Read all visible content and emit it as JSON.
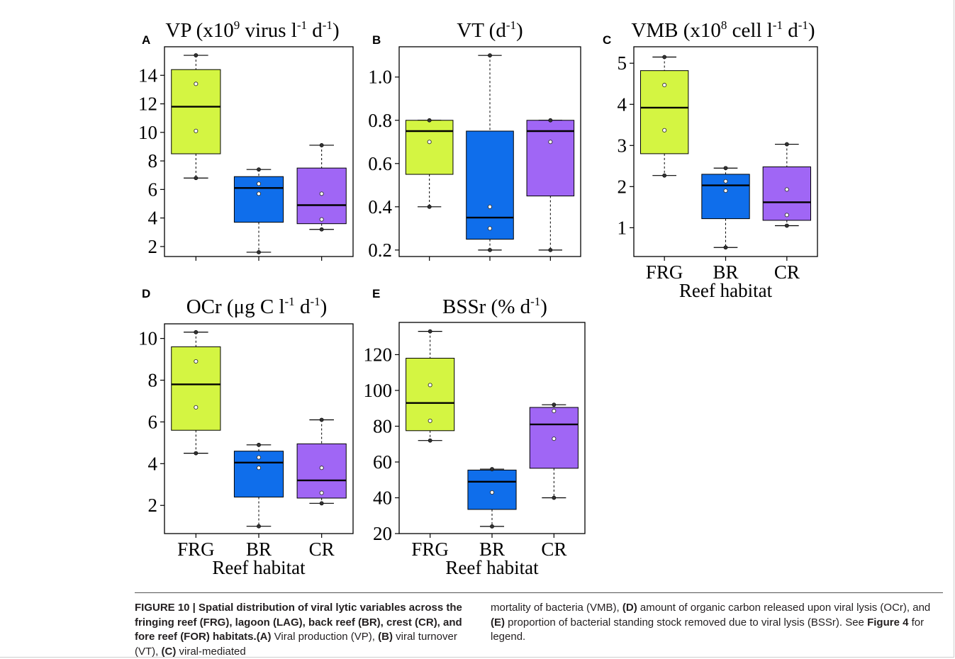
{
  "figure_label": "FIGURE 10",
  "caption": {
    "title": "FIGURE 10 | Spatial distribution of viral lytic variables across the fringing reef (FRG), lagoon (LAG), back reef (BR), crest (CR), and fore reef (FOR) habitats.",
    "a_label": "(A)",
    "a_text": " Viral production (VP), ",
    "b_label": "(B)",
    "b_text": " viral turnover (VT), ",
    "c_label": "(C)",
    "c_text": " viral-mediated mortality of bacteria (VMB), ",
    "d_label": "(D)",
    "d_text": " amount of organic carbon released upon viral lysis (OCr), and ",
    "e_label": "(E)",
    "e_text": " proportion of bacterial standing stock removed due to viral lysis (BSSr). See ",
    "ref": "Figure 4",
    "end": " for legend."
  },
  "colors": {
    "FRG": "#d4f542",
    "BR": "#0f6eeb",
    "CR": "#a066f5"
  },
  "chart_data": [
    {
      "panel": "A",
      "type": "boxplot",
      "title_main": "VP (x10",
      "title_sup1": "9",
      "title_mid": " virus l",
      "title_sup2": "-1",
      "title_mid2": " d",
      "title_sup3": "-1",
      "title_end": ")",
      "categories": [
        "FRG",
        "BR",
        "CR"
      ],
      "ylim": [
        1.3,
        16.0
      ],
      "yticks": [
        2,
        4,
        6,
        8,
        10,
        12,
        14
      ],
      "show_xlabels": false,
      "xlabel": "",
      "boxes": [
        {
          "min": 6.8,
          "q1": 8.5,
          "median": 11.8,
          "q3": 14.4,
          "max": 15.4,
          "points": [
            10.1,
            13.4
          ]
        },
        {
          "min": 1.6,
          "q1": 3.7,
          "median": 6.1,
          "q3": 6.9,
          "max": 7.4,
          "points": [
            5.7,
            6.4
          ]
        },
        {
          "min": 3.2,
          "q1": 3.6,
          "median": 4.9,
          "q3": 7.5,
          "max": 9.1,
          "points": [
            3.9,
            5.7
          ]
        }
      ]
    },
    {
      "panel": "B",
      "type": "boxplot",
      "title_main": "VT (d",
      "title_sup1": "-1",
      "title_mid": "",
      "title_sup2": "",
      "title_mid2": "",
      "title_sup3": "",
      "title_end": ")",
      "categories": [
        "FRG",
        "BR",
        "CR"
      ],
      "ylim": [
        0.17,
        1.14
      ],
      "yticks": [
        "0.2",
        "0.4",
        "0.6",
        "0.8",
        "1.0"
      ],
      "show_xlabels": false,
      "xlabel": "",
      "boxes": [
        {
          "min": 0.4,
          "q1": 0.55,
          "median": 0.75,
          "q3": 0.8,
          "max": 0.8,
          "points": [
            0.7
          ]
        },
        {
          "min": 0.2,
          "q1": 0.25,
          "median": 0.35,
          "q3": 0.75,
          "max": 1.1,
          "points": [
            0.3,
            0.4
          ]
        },
        {
          "min": 0.2,
          "q1": 0.45,
          "median": 0.75,
          "q3": 0.8,
          "max": 0.8,
          "points": [
            0.7
          ]
        }
      ]
    },
    {
      "panel": "C",
      "type": "boxplot",
      "title_main": "VMB (x10",
      "title_sup1": "8",
      "title_mid": " cell l",
      "title_sup2": "-1",
      "title_mid2": " d",
      "title_sup3": "-1",
      "title_end": ")",
      "categories": [
        "FRG",
        "BR",
        "CR"
      ],
      "ylim": [
        0.3,
        5.4
      ],
      "yticks": [
        1,
        2,
        3,
        4,
        5
      ],
      "show_xlabels": true,
      "xlabel": "Reef habitat",
      "boxes": [
        {
          "min": 2.27,
          "q1": 2.8,
          "median": 3.92,
          "q3": 4.82,
          "max": 5.15,
          "points": [
            3.37,
            4.47
          ]
        },
        {
          "min": 0.52,
          "q1": 1.22,
          "median": 2.03,
          "q3": 2.3,
          "max": 2.45,
          "points": [
            1.9,
            2.13
          ]
        },
        {
          "min": 1.05,
          "q1": 1.18,
          "median": 1.62,
          "q3": 2.48,
          "max": 3.03,
          "points": [
            1.31,
            1.93
          ]
        }
      ]
    },
    {
      "panel": "D",
      "type": "boxplot",
      "title_main": "OCr (μg C l",
      "title_sup1": "-1",
      "title_mid": " d",
      "title_sup2": "-1",
      "title_mid2": "",
      "title_sup3": "",
      "title_end": ")",
      "categories": [
        "FRG",
        "BR",
        "CR"
      ],
      "ylim": [
        0.65,
        10.7
      ],
      "yticks": [
        2,
        4,
        6,
        8,
        10
      ],
      "show_xlabels": true,
      "xlabel": "Reef habitat",
      "boxes": [
        {
          "min": 4.5,
          "q1": 5.6,
          "median": 7.8,
          "q3": 9.6,
          "max": 10.3,
          "points": [
            6.7,
            8.9
          ]
        },
        {
          "min": 1.0,
          "q1": 2.4,
          "median": 4.05,
          "q3": 4.6,
          "max": 4.9,
          "points": [
            3.8,
            4.3
          ]
        },
        {
          "min": 2.1,
          "q1": 2.35,
          "median": 3.2,
          "q3": 4.95,
          "max": 6.1,
          "points": [
            2.6,
            3.8
          ]
        }
      ]
    },
    {
      "panel": "E",
      "type": "boxplot",
      "title_main": "BSSr (% d",
      "title_sup1": "-1",
      "title_mid": "",
      "title_sup2": "",
      "title_mid2": "",
      "title_sup3": "",
      "title_end": ")",
      "categories": [
        "FRG",
        "BR",
        "CR"
      ],
      "ylim": [
        20,
        138
      ],
      "yticks": [
        20,
        40,
        60,
        80,
        100,
        120
      ],
      "show_xlabels": true,
      "xlabel": "Reef habitat",
      "boxes": [
        {
          "min": 72,
          "q1": 77.5,
          "median": 93,
          "q3": 118,
          "max": 133,
          "points": [
            83,
            103
          ]
        },
        {
          "min": 24,
          "q1": 33.5,
          "median": 49,
          "q3": 55.5,
          "max": 56,
          "points": [
            43
          ]
        },
        {
          "min": 40,
          "q1": 56.5,
          "median": 81,
          "q3": 90.5,
          "max": 92,
          "points": [
            73,
            88.5
          ]
        }
      ]
    }
  ]
}
